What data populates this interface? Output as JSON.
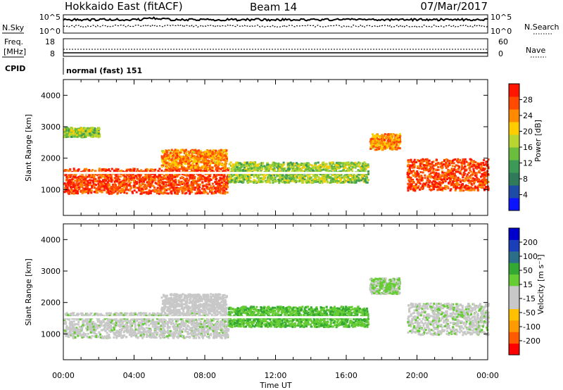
{
  "header": {
    "title": "Hokkaido East (fitACF)",
    "beam": "Beam 14",
    "date": "07/Mar/2017"
  },
  "nsky_panel": {
    "left_label": "N.Sky",
    "right_label": "N.Search",
    "left_ticks": [
      "10^5",
      "10^0"
    ],
    "right_ticks": [
      "10^5",
      "10^0"
    ]
  },
  "freq_panel": {
    "left_label_line1": "Freq.",
    "left_label_line2": "[MHz]",
    "right_label": "Nave",
    "left_ticks": [
      "18",
      "8"
    ],
    "right_ticks": [
      "60",
      "0"
    ],
    "cpid_label": "CPID",
    "cpid_text": "normal (fast) 151"
  },
  "colors": {
    "power_scale": [
      "#0b14ff",
      "#1f4ba8",
      "#2f7a5a",
      "#3c9a56",
      "#6bbd3e",
      "#b9d630",
      "#ffcc00",
      "#ff8a00",
      "#ff4a00",
      "#ff1500"
    ],
    "velocity_scale": [
      "#ff0000",
      "#ff5a00",
      "#ff9a00",
      "#ffc000",
      "#c8c8c8",
      "#c8c8c8",
      "#66cc33",
      "#33a833",
      "#2a6e8a",
      "#1a3fb8",
      "#0000cc"
    ]
  },
  "chart_data": [
    {
      "type": "heatmap",
      "name": "power",
      "ylabel": "Slant Range [km]",
      "ylim": [
        180,
        4500
      ],
      "y_ticks": [
        1000,
        2000,
        3000,
        4000
      ],
      "x_ticks": [
        "00:00",
        "04:00",
        "08:00",
        "12:00",
        "16:00",
        "20:00",
        "00:00"
      ],
      "colorbar": {
        "label": "Power [dB]",
        "range": [
          0,
          32
        ],
        "ticks": [
          "4",
          "8",
          "12",
          "16",
          "20",
          "24",
          "28"
        ]
      },
      "regions": [
        {
          "t": [
            0.0,
            9.3
          ],
          "range": [
            900,
            1700
          ],
          "value": 28
        },
        {
          "t": [
            0.0,
            2.0
          ],
          "range": [
            2700,
            3000
          ],
          "value": 16
        },
        {
          "t": [
            5.5,
            9.2
          ],
          "range": [
            1700,
            2300
          ],
          "value": 24
        },
        {
          "t": [
            9.3,
            17.2
          ],
          "range": [
            1250,
            1900
          ],
          "value": 16
        },
        {
          "t": [
            17.3,
            19.0
          ],
          "range": [
            2300,
            2800
          ],
          "value": 24
        },
        {
          "t": [
            19.4,
            24.0
          ],
          "range": [
            1000,
            2000
          ],
          "value": 28
        }
      ]
    },
    {
      "type": "heatmap",
      "name": "velocity",
      "ylabel": "Slant Range [km]",
      "ylim": [
        180,
        4500
      ],
      "y_ticks": [
        1000,
        2000,
        3000,
        4000
      ],
      "x_ticks": [
        "00:00",
        "04:00",
        "08:00",
        "12:00",
        "16:00",
        "20:00",
        "00:00"
      ],
      "xlabel": "Time UT",
      "colorbar": {
        "label": "Velocity [m s⁻¹]",
        "range": [
          -250,
          250
        ],
        "ticks": [
          "200",
          "100",
          "50",
          "15",
          "-15",
          "-50",
          "-100",
          "-200"
        ]
      },
      "regions": [
        {
          "t": [
            0.0,
            9.3
          ],
          "range": [
            900,
            1700
          ],
          "value": 0
        },
        {
          "t": [
            5.5,
            9.2
          ],
          "range": [
            1700,
            2300
          ],
          "value": -10
        },
        {
          "t": [
            9.3,
            17.2
          ],
          "range": [
            1250,
            1900
          ],
          "value": 60
        },
        {
          "t": [
            17.3,
            19.0
          ],
          "range": [
            2300,
            2800
          ],
          "value": 30
        },
        {
          "t": [
            19.4,
            24.0
          ],
          "range": [
            1000,
            2000
          ],
          "value": 5
        }
      ]
    }
  ]
}
